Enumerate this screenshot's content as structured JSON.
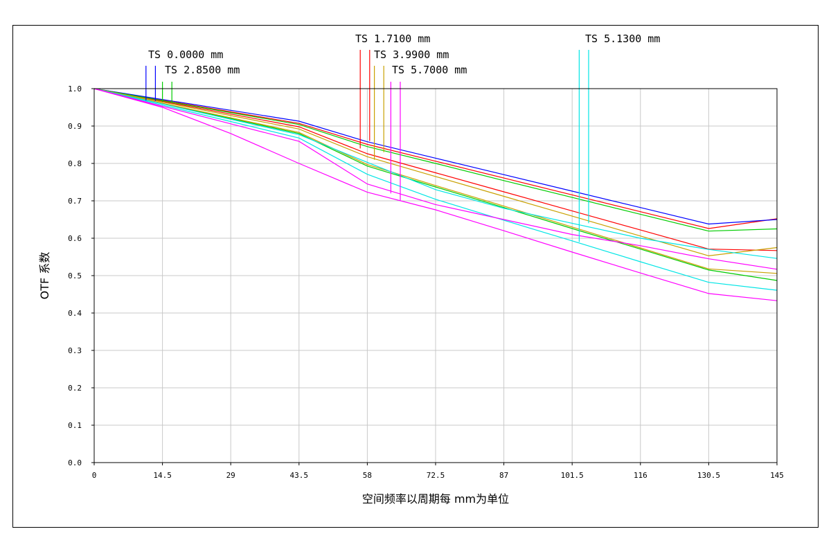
{
  "chart_data": {
    "type": "line",
    "title": "",
    "xlabel": "空间频率以周期每 mm为单位",
    "ylabel": "OTF 系数",
    "xlim": [
      0,
      145
    ],
    "ylim": [
      0,
      1.0
    ],
    "grid": true,
    "x_ticks": [
      "0",
      "14.5",
      "29",
      "43.5",
      "58",
      "72.5",
      "87",
      "101.5",
      "116",
      "130.5",
      "145"
    ],
    "y_ticks": [
      "0.0",
      "0.1",
      "0.2",
      "0.3",
      "0.4",
      "0.5",
      "0.6",
      "0.7",
      "0.8",
      "0.9",
      "1.0"
    ],
    "legend": [
      {
        "label": "TS 0.0000 mm",
        "color": "#0000ff",
        "x_a": 11,
        "x_b": 13
      },
      {
        "label": "TS 2.8500 mm",
        "color": "#00cc00",
        "x_a": 14.5,
        "x_b": 16.5
      },
      {
        "label": "TS 1.7100 mm",
        "color": "#ff0000",
        "x_a": 56.5,
        "x_b": 58.5
      },
      {
        "label": "TS 3.9900 mm",
        "color": "#c8a000",
        "x_a": 59.5,
        "x_b": 61.5
      },
      {
        "label": "TS 5.7000 mm",
        "color": "#ff00ff",
        "x_a": 63,
        "x_b": 65
      },
      {
        "label": "TS 5.1300 mm",
        "color": "#00e5e5",
        "x_a": 103,
        "x_b": 105
      }
    ],
    "x": [
      0,
      14.5,
      29,
      43.5,
      58,
      72.5,
      87,
      101.5,
      116,
      130.5,
      145
    ],
    "series": [
      {
        "color": "#ff0000",
        "values": [
          1.0,
          0.969,
          0.938,
          0.907,
          0.851,
          0.806,
          0.761,
          0.716,
          0.671,
          0.626,
          0.652
        ]
      },
      {
        "color": "#0000ff",
        "values": [
          1.0,
          0.971,
          0.942,
          0.913,
          0.858,
          0.814,
          0.77,
          0.726,
          0.682,
          0.638,
          0.65
        ]
      },
      {
        "color": "#ff0000",
        "values": [
          1.0,
          0.966,
          0.932,
          0.898,
          0.826,
          0.775,
          0.724,
          0.673,
          0.622,
          0.571,
          0.567
        ]
      },
      {
        "color": "#00cc00",
        "values": [
          1.0,
          0.968,
          0.936,
          0.904,
          0.845,
          0.8,
          0.754,
          0.709,
          0.664,
          0.619,
          0.625
        ]
      },
      {
        "color": "#00cc00",
        "values": [
          1.0,
          0.96,
          0.92,
          0.88,
          0.793,
          0.737,
          0.682,
          0.626,
          0.571,
          0.515,
          0.487
        ]
      },
      {
        "color": "#c8a000",
        "values": [
          1.0,
          0.964,
          0.928,
          0.892,
          0.818,
          0.765,
          0.712,
          0.659,
          0.606,
          0.553,
          0.575
        ]
      },
      {
        "color": "#c8a000",
        "values": [
          1.0,
          0.961,
          0.922,
          0.883,
          0.797,
          0.741,
          0.686,
          0.63,
          0.574,
          0.518,
          0.506
        ]
      },
      {
        "color": "#00e5e5",
        "values": [
          1.0,
          0.959,
          0.918,
          0.877,
          0.803,
          0.73,
          0.68,
          0.64,
          0.6,
          0.57,
          0.546
        ]
      },
      {
        "color": "#00e5e5",
        "values": [
          1.0,
          0.956,
          0.912,
          0.868,
          0.771,
          0.704,
          0.648,
          0.593,
          0.537,
          0.482,
          0.461
        ]
      },
      {
        "color": "#ff00ff",
        "values": [
          1.0,
          0.953,
          0.906,
          0.859,
          0.745,
          0.69,
          0.65,
          0.61,
          0.58,
          0.545,
          0.517
        ]
      },
      {
        "color": "#ff00ff",
        "values": [
          1.0,
          0.95,
          0.88,
          0.8,
          0.723,
          0.676,
          0.62,
          0.563,
          0.507,
          0.452,
          0.433
        ]
      }
    ]
  }
}
